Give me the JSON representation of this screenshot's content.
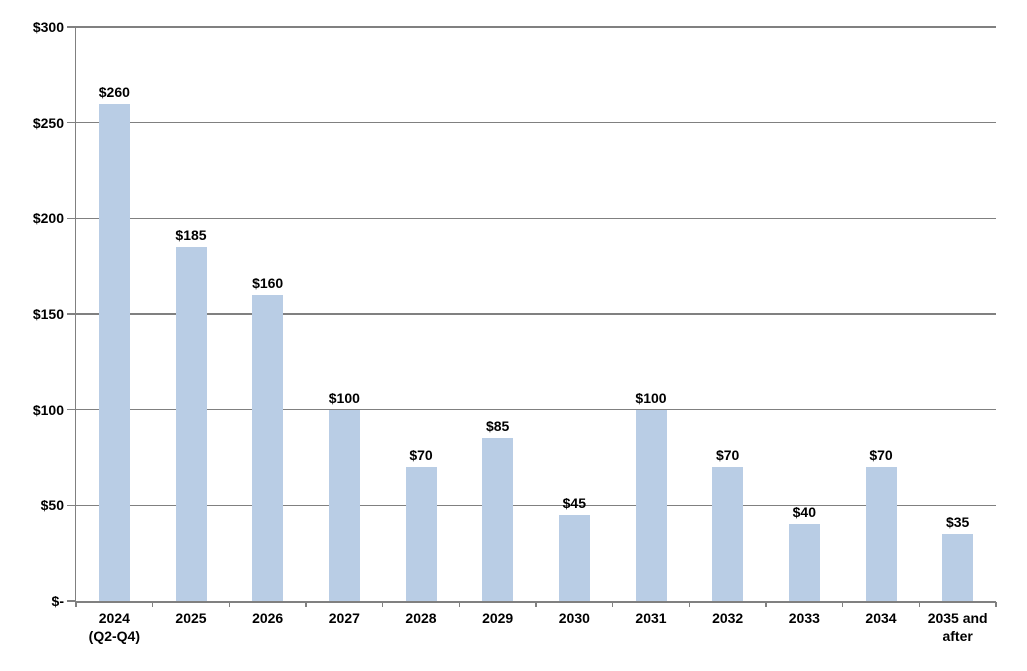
{
  "chart_data": {
    "type": "bar",
    "title": "",
    "xlabel": "",
    "ylabel": "",
    "categories": [
      "2024\n(Q2-Q4)",
      "2025",
      "2026",
      "2027",
      "2028",
      "2029",
      "2030",
      "2031",
      "2032",
      "2033",
      "2034",
      "2035 and\nafter"
    ],
    "values": [
      260,
      185,
      160,
      100,
      70,
      85,
      45,
      100,
      70,
      40,
      70,
      35
    ],
    "data_labels": [
      "$260",
      "$185",
      "$160",
      "$100",
      "$70",
      "$85",
      "$45",
      "$100",
      "$70",
      "$40",
      "$70",
      "$35"
    ],
    "y_ticks": [
      0,
      50,
      100,
      150,
      200,
      250,
      300
    ],
    "y_tick_labels": [
      "$-",
      "$50",
      "$100",
      "$150",
      "$200",
      "$250",
      "$300"
    ],
    "ylim": [
      0,
      300
    ],
    "grid": true,
    "legend": false,
    "colors": {
      "bar_fill": "#B9CDE5",
      "gridline": "#808080",
      "axis": "#808080",
      "label_text": "#000000",
      "background": "#FFFFFF"
    }
  }
}
